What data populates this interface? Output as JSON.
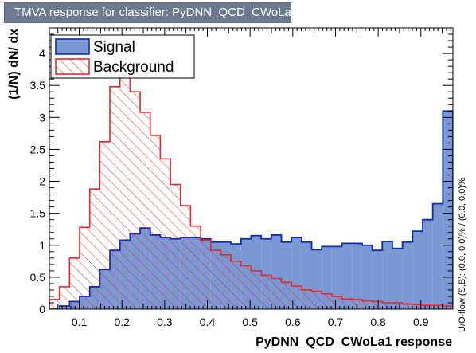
{
  "title": "TMVA response for classifier: PyDNN_QCD_CWoLa1",
  "side_note": "U/O-flow (S,B): (0.0, 0.0)% / (0.0, 0.0)%",
  "colors": {
    "signal_fill": "#7a98d4",
    "signal_line": "#0f2bb3",
    "background_line": "#e8262c",
    "title_bg": "#6b7a8f"
  },
  "chart_data": {
    "type": "histogram",
    "title": "TMVA response for classifier: PyDNN_QCD_CWoLa1",
    "xlabel": "PyDNN_QCD_CWoLa1 response",
    "ylabel": "(1/N) dN/ dx",
    "xlim": [
      0.03,
      0.975
    ],
    "ylim": [
      0,
      4.4
    ],
    "xticks": [
      0.1,
      0.2,
      0.3,
      0.4,
      0.5,
      0.6,
      0.7,
      0.8,
      0.9
    ],
    "yticks": [
      0,
      0.5,
      1,
      1.5,
      2,
      2.5,
      3,
      3.5,
      4
    ],
    "ytick_labels": [
      "0",
      "0.5",
      "1",
      "1.5",
      "2",
      "2.5",
      "3",
      "3.5",
      "4"
    ],
    "bins": 40,
    "legend_position": "top-left",
    "series": [
      {
        "name": "Signal",
        "style": "filled",
        "values": [
          0.0,
          0.05,
          0.12,
          0.2,
          0.35,
          0.62,
          0.92,
          1.08,
          1.18,
          1.27,
          1.16,
          1.12,
          1.1,
          1.12,
          1.12,
          1.1,
          1.05,
          1.05,
          1.02,
          1.1,
          1.15,
          1.1,
          1.16,
          1.05,
          1.12,
          1.05,
          0.93,
          0.98,
          0.98,
          1.03,
          1.03,
          1.0,
          0.92,
          1.06,
          0.95,
          1.05,
          1.22,
          1.4,
          1.65,
          3.1
        ]
      },
      {
        "name": "Background",
        "style": "hatched",
        "values": [
          0.15,
          0.35,
          0.8,
          1.28,
          1.88,
          2.62,
          3.48,
          3.72,
          3.4,
          3.08,
          2.72,
          2.35,
          1.95,
          1.62,
          1.3,
          1.08,
          0.92,
          0.85,
          0.75,
          0.68,
          0.6,
          0.53,
          0.48,
          0.42,
          0.36,
          0.3,
          0.28,
          0.24,
          0.2,
          0.16,
          0.15,
          0.13,
          0.12,
          0.1,
          0.1,
          0.08,
          0.07,
          0.06,
          0.06,
          0.05
        ]
      }
    ]
  }
}
